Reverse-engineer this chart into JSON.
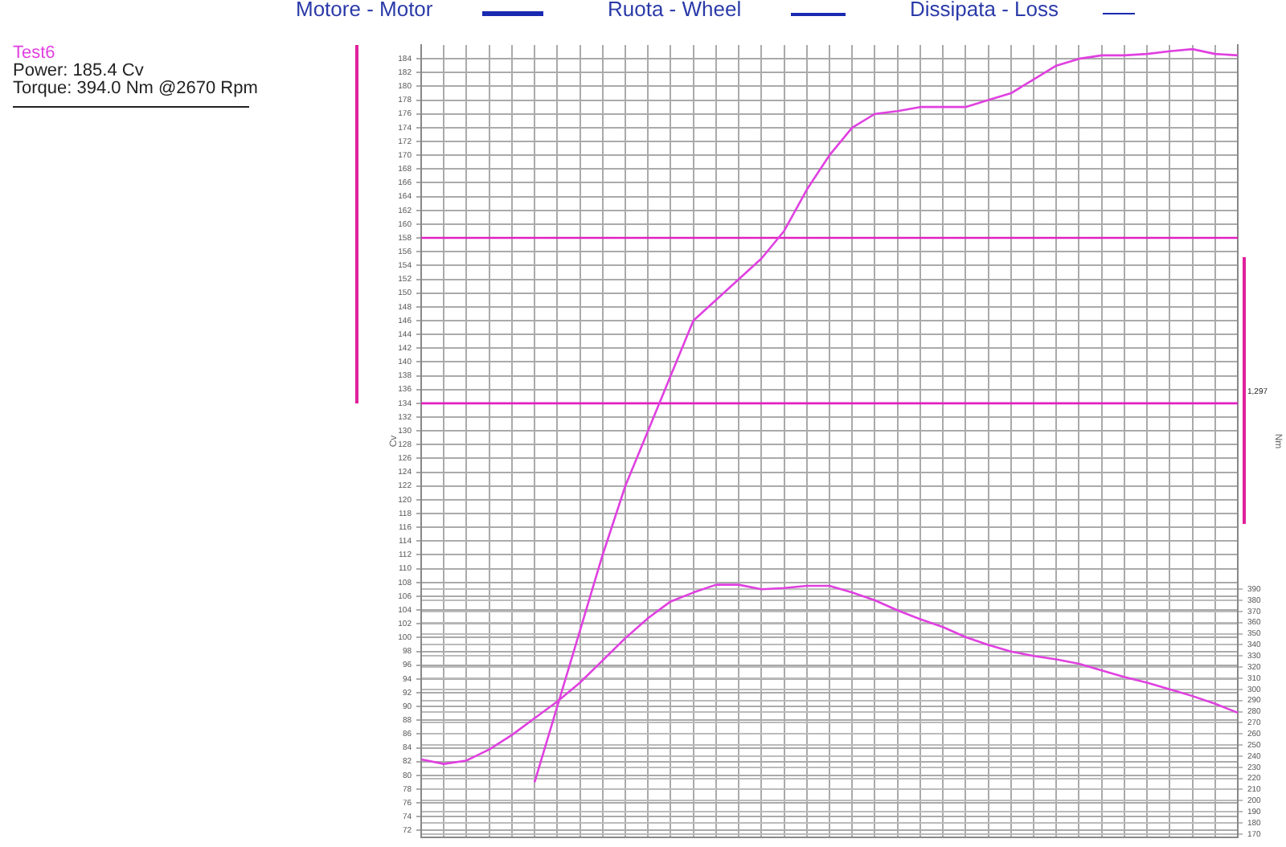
{
  "chart_data": {
    "type": "line",
    "title": "Test6",
    "annotations": [
      "Power: 185.4 Cv",
      "Torque: 394.0 Nm @2670 Rpm",
      "Motore - Motor",
      "Ruota - Wheel",
      "Dissipata - Loss",
      "1,297"
    ],
    "ylabel": "Cv",
    "y2label": "Nm",
    "categories": [
      null,
      null,
      null,
      null,
      null,
      null,
      null,
      null,
      null,
      null,
      null,
      null,
      null,
      null,
      null,
      null,
      null,
      null,
      null,
      null,
      null,
      null,
      null,
      null,
      null,
      null,
      null,
      null,
      null,
      null,
      null,
      null,
      null,
      null,
      null,
      null,
      null
    ],
    "series": [
      {
        "color": "#e040e0",
        "values": [
          null,
          null,
          null,
          null,
          null,
          79,
          90,
          101,
          112,
          122,
          130,
          138,
          146,
          149,
          152,
          155,
          159,
          165,
          170,
          174,
          176,
          176.4,
          177,
          177,
          177,
          178,
          179,
          181,
          183,
          184,
          184.5,
          184.5,
          184.7,
          185.1,
          185.4,
          184.7,
          184.5
        ]
      },
      {
        "color": "#e020c0",
        "values": [
          158,
          158,
          158,
          158,
          158,
          158,
          158,
          158,
          158,
          158,
          158,
          158,
          158,
          158,
          158,
          158,
          158,
          158,
          158,
          158,
          158,
          158,
          158,
          158,
          158,
          158,
          158,
          158,
          158,
          158,
          158,
          158,
          158,
          158,
          158,
          158,
          158
        ]
      },
      {
        "color": "#e020c0",
        "values": [
          134,
          134,
          134,
          134,
          134,
          134,
          134,
          134,
          134,
          134,
          134,
          134,
          134,
          134,
          134,
          134,
          134,
          134,
          134,
          134,
          134,
          134,
          134,
          134,
          134,
          134,
          134,
          134,
          134,
          134,
          134,
          134,
          134,
          134,
          134,
          134,
          134
        ]
      },
      {
        "color": "#e040e0",
        "axis": "y2",
        "values": [
          237,
          233,
          236,
          246,
          259,
          274,
          289,
          306,
          326,
          346,
          364,
          379,
          387,
          394,
          394,
          390,
          391,
          393,
          393,
          387,
          380,
          371,
          363,
          356,
          347,
          340,
          334,
          330,
          327,
          323,
          317,
          311,
          306,
          300,
          294,
          287,
          279
        ]
      }
    ],
    "ylim": [
      71,
      186
    ],
    "yticks": [
      72,
      74,
      76,
      78,
      80,
      82,
      84,
      86,
      88,
      90,
      92,
      94,
      96,
      98,
      100,
      102,
      104,
      106,
      108,
      110,
      112,
      114,
      116,
      118,
      120,
      122,
      124,
      126,
      128,
      130,
      132,
      134,
      136,
      138,
      140,
      142,
      144,
      146,
      148,
      150,
      152,
      154,
      156,
      158,
      160,
      162,
      164,
      166,
      168,
      170,
      172,
      174,
      176,
      178,
      180,
      182,
      184
    ],
    "y2lim": [
      167,
      879
    ],
    "y2ticks": [
      170,
      180,
      190,
      200,
      210,
      220,
      230,
      240,
      250,
      260,
      270,
      280,
      290,
      300,
      310,
      320,
      330,
      340,
      350,
      360,
      370,
      380,
      390
    ],
    "grid": true,
    "tick_labels": "y",
    "legend": false,
    "marker": "none",
    "line_style": "solid"
  }
}
